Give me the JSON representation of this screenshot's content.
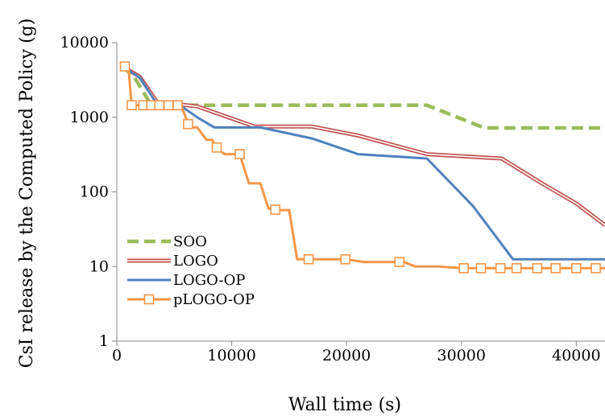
{
  "chart_data": {
    "type": "line",
    "title": "",
    "xlabel": "Wall time (s)",
    "ylabel": "CsI release by the Computed Policy (g)",
    "xlim": [
      0,
      42500
    ],
    "ylim": [
      1,
      10000
    ],
    "yscale": "log",
    "x_ticks": [
      0,
      10000,
      20000,
      30000,
      40000
    ],
    "x_tick_labels": [
      "0",
      "10000",
      "20000",
      "30000",
      "40000"
    ],
    "y_ticks": [
      1,
      10,
      100,
      1000,
      10000
    ],
    "y_tick_labels": [
      "1",
      "10",
      "100",
      "1000",
      "10000"
    ],
    "grid": false,
    "legend_position": "bottom-left",
    "series": [
      {
        "name": "SOO",
        "color": "#9bbb59",
        "style": "dashed",
        "marker": "none",
        "points": [
          [
            500,
            4800
          ],
          [
            1500,
            3500
          ],
          [
            3000,
            1450
          ],
          [
            5000,
            1450
          ],
          [
            7500,
            1450
          ],
          [
            27000,
            1450
          ],
          [
            32000,
            720
          ],
          [
            42500,
            720
          ]
        ]
      },
      {
        "name": "LOGO",
        "color": "#c0504d",
        "style": "double",
        "marker": "none",
        "points": [
          [
            500,
            4800
          ],
          [
            2000,
            3500
          ],
          [
            3500,
            1600
          ],
          [
            7000,
            1400
          ],
          [
            12000,
            750
          ],
          [
            17000,
            750
          ],
          [
            21000,
            570
          ],
          [
            27000,
            320
          ],
          [
            33500,
            280
          ],
          [
            37000,
            130
          ],
          [
            40000,
            70
          ],
          [
            42500,
            36
          ]
        ]
      },
      {
        "name": "LOGO-OP",
        "color": "#4f81bd",
        "style": "solid",
        "marker": "none",
        "points": [
          [
            500,
            4800
          ],
          [
            2000,
            3400
          ],
          [
            3500,
            1500
          ],
          [
            5500,
            1450
          ],
          [
            7000,
            1000
          ],
          [
            8500,
            730
          ],
          [
            12500,
            730
          ],
          [
            17000,
            520
          ],
          [
            21000,
            320
          ],
          [
            27000,
            280
          ],
          [
            31000,
            65
          ],
          [
            34500,
            12.5
          ],
          [
            42500,
            12.5
          ]
        ]
      },
      {
        "name": "pLOGO-OP",
        "color": "#f79646",
        "style": "solid",
        "marker": "square",
        "points": [
          [
            500,
            4800
          ],
          [
            1000,
            4800
          ],
          [
            1300,
            1450
          ],
          [
            2000,
            1450
          ],
          [
            3000,
            1450
          ],
          [
            4000,
            1450
          ],
          [
            5000,
            1450
          ],
          [
            5600,
            1450
          ],
          [
            6000,
            1000
          ],
          [
            6300,
            730
          ],
          [
            7000,
            730
          ],
          [
            7800,
            500
          ],
          [
            8300,
            500
          ],
          [
            8800,
            370
          ],
          [
            9400,
            320
          ],
          [
            10700,
            320
          ],
          [
            11500,
            130
          ],
          [
            12500,
            130
          ],
          [
            13200,
            60
          ],
          [
            14000,
            57
          ],
          [
            15000,
            57
          ],
          [
            15700,
            12.5
          ],
          [
            16500,
            12.5
          ],
          [
            20000,
            12.5
          ],
          [
            21500,
            11.5
          ],
          [
            25000,
            11.5
          ],
          [
            26000,
            10
          ],
          [
            28000,
            10
          ],
          [
            30000,
            9.5
          ],
          [
            42500,
            9.5
          ]
        ],
        "marker_x": [
          700,
          1300,
          2300,
          3000,
          3700,
          4500,
          5300,
          6200,
          8700,
          10700,
          13800,
          16700,
          19900,
          24600,
          30200,
          31700,
          33400,
          34800,
          36600,
          38200,
          40000,
          41700
        ]
      }
    ]
  }
}
